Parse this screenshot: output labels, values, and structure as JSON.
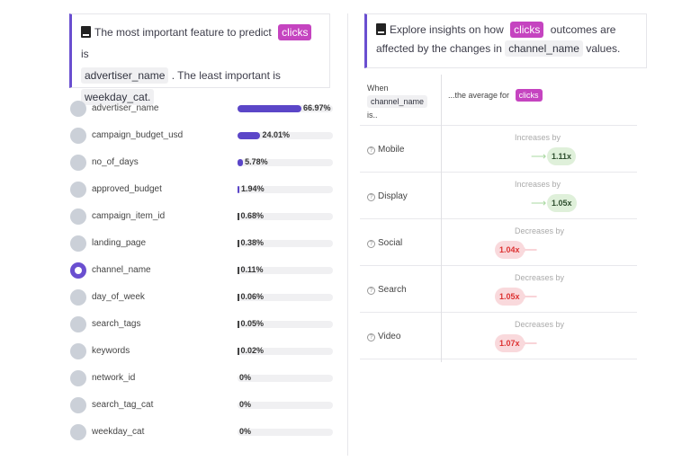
{
  "left_card": {
    "prefix": "The most important feature to predict",
    "target": "clicks",
    "is": "is",
    "most": "advertiser_name",
    "mid": ". The least important is",
    "least": "weekday_cat."
  },
  "features": [
    {
      "name": "advertiser_name",
      "pct": 66.97,
      "label": "66.97%",
      "selected": false
    },
    {
      "name": "campaign_budget_usd",
      "pct": 24.01,
      "label": "24.01%",
      "selected": false
    },
    {
      "name": "no_of_days",
      "pct": 5.78,
      "label": "5.78%",
      "selected": false
    },
    {
      "name": "approved_budget",
      "pct": 1.94,
      "label": "1.94%",
      "selected": false
    },
    {
      "name": "campaign_item_id",
      "pct": 0.68,
      "label": "0.68%",
      "selected": false
    },
    {
      "name": "landing_page",
      "pct": 0.38,
      "label": "0.38%",
      "selected": false
    },
    {
      "name": "channel_name",
      "pct": 0.11,
      "label": "0.11%",
      "selected": true
    },
    {
      "name": "day_of_week",
      "pct": 0.06,
      "label": "0.06%",
      "selected": false
    },
    {
      "name": "search_tags",
      "pct": 0.05,
      "label": "0.05%",
      "selected": false
    },
    {
      "name": "keywords",
      "pct": 0.02,
      "label": "0.02%",
      "selected": false
    },
    {
      "name": "network_id",
      "pct": 0,
      "label": "0%",
      "selected": false
    },
    {
      "name": "search_tag_cat",
      "pct": 0,
      "label": "0%",
      "selected": false
    },
    {
      "name": "weekday_cat",
      "pct": 0,
      "label": "0%",
      "selected": false
    }
  ],
  "right_card": {
    "prefix": "Explore insights on how",
    "target": "clicks",
    "mid": "outcomes are affected by the changes in",
    "feature": "channel_name",
    "suffix": "values."
  },
  "table": {
    "when": "When",
    "feature": "channel_name",
    "is": "is..",
    "avg": "...the average for",
    "target": "clicks",
    "rows": [
      {
        "category": "Mobile",
        "direction": "Increases by",
        "value": "1.11x",
        "type": "increase"
      },
      {
        "category": "Display",
        "direction": "Increases by",
        "value": "1.05x",
        "type": "increase"
      },
      {
        "category": "Social",
        "direction": "Decreases by",
        "value": "1.04x",
        "type": "decrease"
      },
      {
        "category": "Search",
        "direction": "Decreases by",
        "value": "1.05x",
        "type": "decrease"
      },
      {
        "category": "Video",
        "direction": "Decreases by",
        "value": "1.07x",
        "type": "decrease"
      }
    ]
  },
  "colors": {
    "accent": "#5b46c8",
    "target_pill": "#c544c0",
    "increase": "#dff0da",
    "decrease": "#f9d9dc"
  }
}
